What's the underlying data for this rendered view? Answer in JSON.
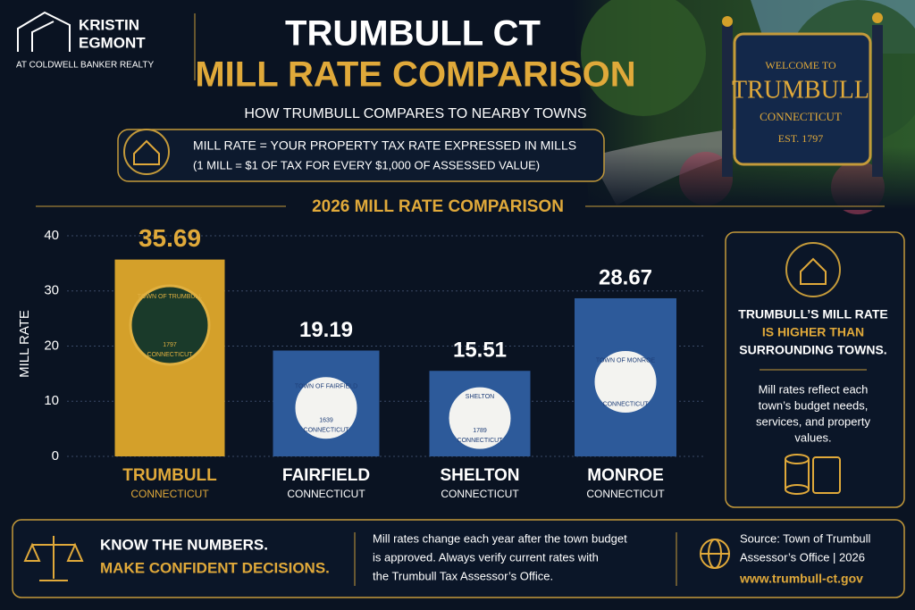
{
  "brand": {
    "name_line1": "KRISTIN",
    "name_line2": "EGMONT",
    "tagline": "AT COLDWELL BANKER REALTY"
  },
  "header": {
    "title": "TRUMBULL CT",
    "subtitle": "MILL RATE COMPARISON",
    "tagline": "HOW TRUMBULL COMPARES TO NEARBY TOWNS"
  },
  "definition": {
    "line1": "MILL RATE = YOUR PROPERTY TAX RATE EXPRESSED IN MILLS",
    "line2": "(1 MILL = $1 OF TAX FOR EVERY $1,000 OF ASSESSED VALUE)"
  },
  "sign": {
    "welcome": "WELCOME TO",
    "town": "TRUMBULL",
    "state": "CONNECTICUT",
    "est": "EST. 1797"
  },
  "chart_data": {
    "type": "bar",
    "title": "2026 MILL RATE COMPARISON",
    "y_label": "MILL RATE",
    "categories": [
      "TRUMBULL",
      "FAIRFIELD",
      "SHELTON",
      "MONROE"
    ],
    "category_sublabels": [
      "CONNECTICUT",
      "CONNECTICUT",
      "CONNECTICUT",
      "CONNECTICUT"
    ],
    "values": [
      35.69,
      19.19,
      15.51,
      28.67
    ],
    "colors": [
      "#d4a02a",
      "#2d5a9a",
      "#2d5a9a",
      "#2d5a9a"
    ],
    "seals": [
      {
        "top": "TOWN OF TRUMBULL",
        "year": "1797",
        "bottom": "CONNECTICUT"
      },
      {
        "top": "TOWN OF FAIRFIELD",
        "year": "1639",
        "bottom": "CONNECTICUT"
      },
      {
        "top": "SHELTON",
        "year": "1789",
        "bottom": "CONNECTICUT"
      },
      {
        "top": "TOWN OF MONROE",
        "bottom": "CONNECTICUT"
      }
    ],
    "ylim": [
      0,
      40
    ],
    "yticks": [
      0,
      10,
      20,
      30,
      40
    ],
    "grid": true
  },
  "sidebar": {
    "line1": "TRUMBULL’S MILL RATE",
    "line2": "IS HIGHER THAN",
    "line3": "SURROUNDING TOWNS.",
    "note": [
      "Mill rates reflect each",
      "town’s budget needs,",
      "services, and property",
      "values."
    ]
  },
  "footer": {
    "headline1": "KNOW THE NUMBERS.",
    "headline2": "MAKE CONFIDENT DECISIONS.",
    "note": [
      "Mill rates change each year after the town budget",
      "is approved. Always verify current rates with",
      "the Trumbull Tax Assessor’s Office."
    ],
    "source": [
      "Source: Town of Trumbull",
      "Assessor’s Office | 2026"
    ],
    "url": "www.trumbull-ct.gov"
  }
}
